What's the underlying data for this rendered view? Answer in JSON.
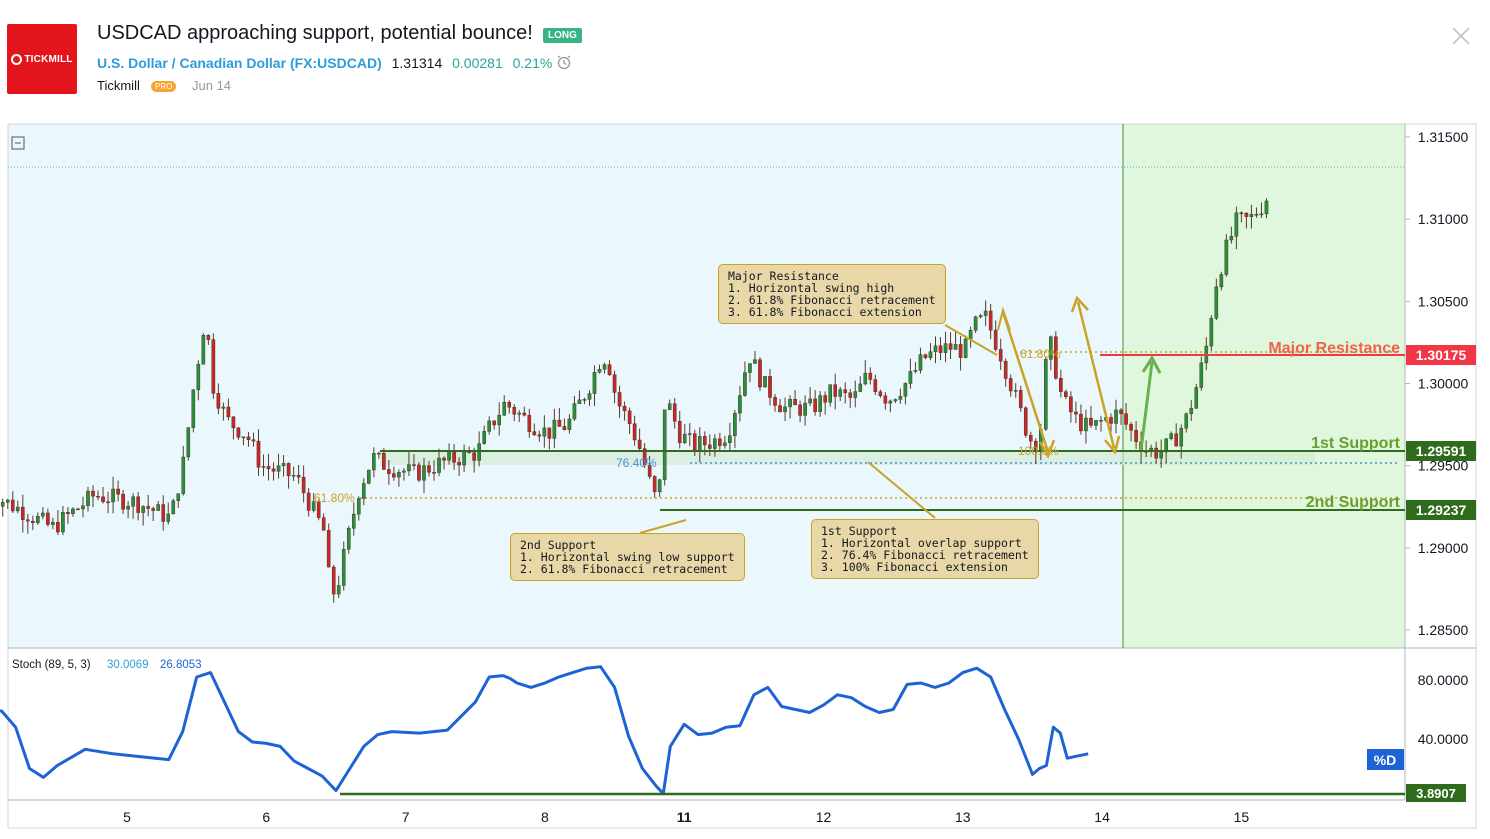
{
  "header": {
    "logo_text": "TICKMILL",
    "title": "USDCAD approaching support, potential bounce!",
    "badge": "LONG",
    "symbol_name": "U.S. Dollar / Canadian Dollar",
    "symbol_code_open": "(",
    "symbol_code": "FX:USDCAD",
    "symbol_code_close": ")",
    "price": "1.31314",
    "change": "0.00281",
    "change_pct": "0.21%",
    "author": "Tickmill",
    "author_badge": "PRO",
    "date": "Jun 14"
  },
  "colors": {
    "brand": "#e3141b",
    "long": "#37b481",
    "resistance": "#f23645",
    "support": "#6a9e2e",
    "support_line": "#2f6b1c",
    "fib": "#c9a227",
    "stoch": "#1e63d6",
    "price_bg": "#eaf7fc",
    "target_bg": "#dff7dc"
  },
  "annotations": {
    "major_resistance": {
      "label": "Major Resistance",
      "price": "1.30175"
    },
    "first_support": {
      "label": "1st Support",
      "price": "1.29591"
    },
    "second_support": {
      "label": "2nd Support",
      "price": "1.29237"
    },
    "stoch_level": "3.8907",
    "fib_76": "76.40%",
    "fib_61_a": "61.80%",
    "fib_61_b": "61.80%",
    "fib_100": "100.0%",
    "callout_resistance": "Major Resistance\n1. Horizontal swing high\n2. 61.8% Fibonacci retracement\n3. 61.8% Fibonacci extension",
    "callout_2nd": "2nd Support\n1. Horizontal swing low support\n2. 61.8% Fibonacci retracement",
    "callout_1st": "1st Support\n1. Horizontal overlap support\n2. 76.4% Fibonacci retracement\n3. 100% Fibonacci extension"
  },
  "indicator": {
    "name": "Stoch (89, 5, 3)",
    "k_value": "30.0069",
    "d_value": "26.8053",
    "badge": "%D"
  },
  "chart_data": [
    {
      "type": "candlestick",
      "title": "",
      "x_ticks": [
        "5",
        "6",
        "7",
        "8",
        "11",
        "12",
        "13",
        "14",
        "15"
      ],
      "y_ticks": [
        "1.31500",
        "1.31000",
        "1.30500",
        "1.30000",
        "1.29500",
        "1.29000",
        "1.28500"
      ],
      "ylim": [
        1.2833,
        1.3165
      ],
      "current_price": 1.31314,
      "levels": [
        {
          "name": "Major Resistance",
          "value": 1.30175
        },
        {
          "name": "1st Support",
          "value": 1.29591
        },
        {
          "name": "2nd Support",
          "value": 1.29237
        }
      ],
      "path": [
        {
          "x": 4.0,
          "y": 1.2935
        },
        {
          "x": 4.3,
          "y": 1.2922
        },
        {
          "x": 4.5,
          "y": 1.2912
        },
        {
          "x": 4.8,
          "y": 1.2932
        },
        {
          "x": 5.1,
          "y": 1.2928
        },
        {
          "x": 5.35,
          "y": 1.2918
        },
        {
          "x": 5.45,
          "y": 1.2955
        },
        {
          "x": 5.5,
          "y": 1.299
        },
        {
          "x": 5.6,
          "y": 1.3042
        },
        {
          "x": 5.65,
          "y": 1.3
        },
        {
          "x": 5.75,
          "y": 1.2978
        },
        {
          "x": 5.9,
          "y": 1.2968
        },
        {
          "x": 6.0,
          "y": 1.295
        },
        {
          "x": 6.25,
          "y": 1.2943
        },
        {
          "x": 6.45,
          "y": 1.291
        },
        {
          "x": 6.5,
          "y": 1.287
        },
        {
          "x": 6.55,
          "y": 1.2878
        },
        {
          "x": 6.62,
          "y": 1.2905
        },
        {
          "x": 6.7,
          "y": 1.2935
        },
        {
          "x": 6.8,
          "y": 1.2955
        },
        {
          "x": 6.9,
          "y": 1.295
        },
        {
          "x": 7.1,
          "y": 1.2945
        },
        {
          "x": 7.3,
          "y": 1.2952
        },
        {
          "x": 7.55,
          "y": 1.2958
        },
        {
          "x": 7.65,
          "y": 1.2975
        },
        {
          "x": 7.75,
          "y": 1.2988
        },
        {
          "x": 7.9,
          "y": 1.2978
        },
        {
          "x": 8.05,
          "y": 1.297
        },
        {
          "x": 8.2,
          "y": 1.2975
        },
        {
          "x": 8.35,
          "y": 1.2998
        },
        {
          "x": 8.45,
          "y": 1.3018
        },
        {
          "x": 8.5,
          "y": 1.301
        },
        {
          "x": 8.55,
          "y": 1.299
        },
        {
          "x": 8.65,
          "y": 1.2975
        },
        {
          "x": 8.72,
          "y": 1.296
        },
        {
          "x": 8.78,
          "y": 1.2942
        },
        {
          "x": 8.85,
          "y": 1.2925
        },
        {
          "x": 8.9,
          "y": 1.2992
        },
        {
          "x": 9.0,
          "y": 1.297
        },
        {
          "x": 9.1,
          "y": 1.2962
        },
        {
          "x": 9.25,
          "y": 1.2965
        },
        {
          "x": 9.35,
          "y": 1.297
        },
        {
          "x": 9.45,
          "y": 1.3
        },
        {
          "x": 9.5,
          "y": 1.3018
        },
        {
          "x": 9.6,
          "y": 1.3
        },
        {
          "x": 9.75,
          "y": 1.2985
        },
        {
          "x": 9.95,
          "y": 1.2985
        },
        {
          "x": 10.1,
          "y": 1.2995
        },
        {
          "x": 10.25,
          "y": 1.299
        },
        {
          "x": 10.35,
          "y": 1.3005
        },
        {
          "x": 10.5,
          "y": 1.299
        },
        {
          "x": 10.65,
          "y": 1.3002
        },
        {
          "x": 10.75,
          "y": 1.3015
        },
        {
          "x": 10.85,
          "y": 1.302
        },
        {
          "x": 10.95,
          "y": 1.3022
        },
        {
          "x": 11.05,
          "y": 1.302
        },
        {
          "x": 11.12,
          "y": 1.3035
        },
        {
          "x": 11.2,
          "y": 1.304
        },
        {
          "x": 11.3,
          "y": 1.302
        },
        {
          "x": 11.4,
          "y": 1.2995
        },
        {
          "x": 11.5,
          "y": 1.297
        },
        {
          "x": 11.55,
          "y": 1.2962
        },
        {
          "x": 11.6,
          "y": 1.2975
        },
        {
          "x": 11.65,
          "y": 1.303
        },
        {
          "x": 11.7,
          "y": 1.301
        },
        {
          "x": 11.75,
          "y": 1.299
        },
        {
          "x": 11.85,
          "y": 1.2978
        },
        {
          "x": 11.95,
          "y": 1.2972
        },
        {
          "x": 12.05,
          "y": 1.2978
        },
        {
          "x": 12.15,
          "y": 1.2982
        },
        {
          "x": 12.25,
          "y": 1.297
        },
        {
          "x": 12.35,
          "y": 1.296
        },
        {
          "x": 12.45,
          "y": 1.2958
        },
        {
          "x": 12.55,
          "y": 1.2965
        },
        {
          "x": 12.65,
          "y": 1.298
        },
        {
          "x": 12.72,
          "y": 1.3
        },
        {
          "x": 12.78,
          "y": 1.302
        },
        {
          "x": 12.85,
          "y": 1.306
        },
        {
          "x": 12.92,
          "y": 1.308
        },
        {
          "x": 13.0,
          "y": 1.3098
        },
        {
          "x": 13.1,
          "y": 1.31
        },
        {
          "x": 13.2,
          "y": 1.311
        },
        {
          "x": 13.3,
          "y": 1.3128
        },
        {
          "x": 13.35,
          "y": 1.3133
        },
        {
          "x": 13.4,
          "y": 1.31314
        }
      ]
    },
    {
      "type": "line",
      "title": "",
      "y_ticks": [
        "80.0000",
        "40.0000"
      ],
      "ylim": [
        0,
        95
      ],
      "series": [
        {
          "name": "Stoch (89, 5, 3)",
          "x": [
            4.0,
            4.1,
            4.2,
            4.3,
            4.4,
            4.5,
            4.7,
            4.9,
            5.1,
            5.3,
            5.4,
            5.5,
            5.6,
            5.7,
            5.8,
            5.9,
            6.0,
            6.1,
            6.2,
            6.3,
            6.4,
            6.5,
            6.6,
            6.7,
            6.8,
            6.9,
            7.1,
            7.3,
            7.5,
            7.6,
            7.7,
            7.75,
            7.8,
            7.9,
            8.0,
            8.1,
            8.2,
            8.3,
            8.4,
            8.5,
            8.6,
            8.7,
            8.8,
            8.85,
            8.9,
            9.0,
            9.1,
            9.2,
            9.3,
            9.4,
            9.5,
            9.6,
            9.7,
            9.8,
            9.9,
            10.0,
            10.1,
            10.2,
            10.3,
            10.4,
            10.5,
            10.6,
            10.7,
            10.8,
            10.9,
            11.0,
            11.1,
            11.2,
            11.3,
            11.4,
            11.5,
            11.55,
            11.6,
            11.65,
            11.7,
            11.75,
            11.8,
            11.9
          ],
          "values": [
            60,
            59,
            48,
            20,
            14,
            22,
            33,
            30,
            28,
            26,
            45,
            82,
            85,
            65,
            45,
            38,
            37,
            35,
            25,
            20,
            15,
            5,
            20,
            35,
            43,
            45,
            44,
            46,
            65,
            82,
            83,
            81,
            78,
            75,
            78,
            82,
            85,
            88,
            89,
            75,
            42,
            20,
            8,
            3,
            35,
            50,
            43,
            44,
            48,
            49,
            70,
            75,
            62,
            60,
            58,
            63,
            70,
            68,
            62,
            58,
            60,
            77,
            78,
            75,
            78,
            85,
            88,
            82,
            60,
            40,
            16,
            20,
            22,
            48,
            44,
            27,
            28,
            30
          ]
        }
      ]
    }
  ]
}
